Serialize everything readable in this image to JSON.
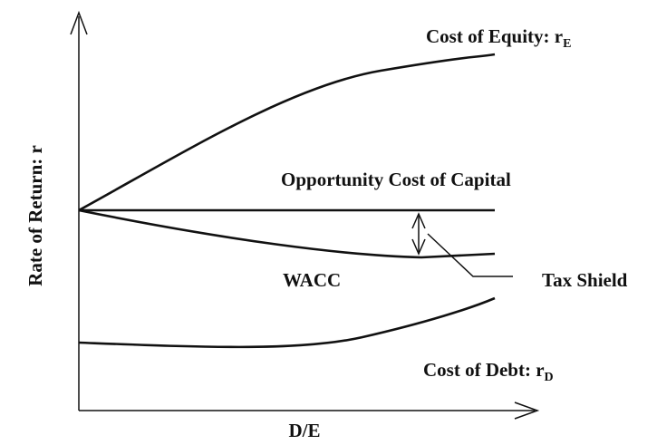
{
  "axes": {
    "y_label": "Rate of Return: r",
    "x_label": "D/E"
  },
  "curves": {
    "cost_of_equity": {
      "label": "Cost of Equity: r",
      "subscript": "E"
    },
    "opportunity_cost": {
      "label": "Opportunity Cost of Capital"
    },
    "wacc": {
      "label": "WACC"
    },
    "tax_shield": {
      "label": "Tax Shield"
    },
    "cost_of_debt": {
      "label": "Cost of Debt: r",
      "subscript": "D"
    }
  }
}
